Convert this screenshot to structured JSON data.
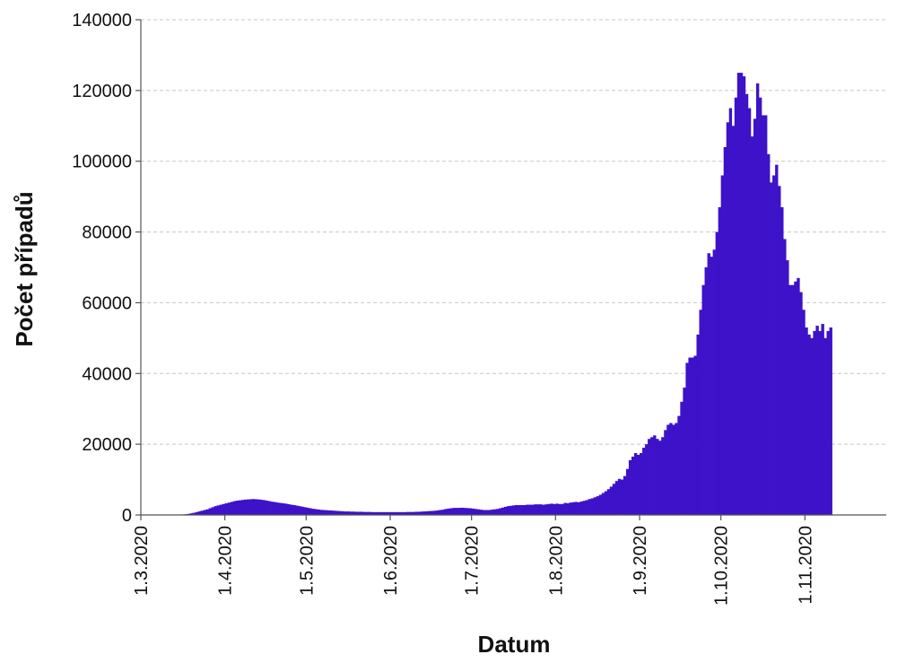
{
  "chart_data": {
    "type": "bar",
    "title": "",
    "xlabel": "Datum",
    "ylabel": "Počet případů",
    "bar_color": "#3d12c9",
    "grid": true,
    "ylim": [
      0,
      140000
    ],
    "y_ticks": [
      0,
      20000,
      40000,
      60000,
      80000,
      100000,
      120000,
      140000
    ],
    "x_start_date": "2020-03-01",
    "x_end_date": "2020-11-30",
    "x_ticks": [
      "1.3.2020",
      "1.4.2020",
      "1.5.2020",
      "1.6.2020",
      "1.7.2020",
      "1.8.2020",
      "1.9.2020",
      "1.10.2020",
      "1.11.2020"
    ],
    "series": [
      {
        "values": [
          0,
          0,
          0,
          0,
          0,
          0,
          0,
          0,
          0,
          0,
          0,
          0,
          0,
          0,
          100,
          150,
          200,
          300,
          450,
          600,
          800,
          1000,
          1200,
          1400,
          1600,
          1900,
          2200,
          2500,
          2700,
          2900,
          3100,
          3300,
          3500,
          3700,
          3900,
          4050,
          4150,
          4250,
          4350,
          4400,
          4450,
          4500,
          4450,
          4400,
          4300,
          4200,
          4050,
          3900,
          3750,
          3650,
          3500,
          3400,
          3300,
          3200,
          3050,
          2900,
          2800,
          2650,
          2500,
          2350,
          2200,
          2050,
          1900,
          1750,
          1650,
          1550,
          1450,
          1400,
          1350,
          1300,
          1250,
          1200,
          1150,
          1100,
          1050,
          1000,
          1000,
          950,
          950,
          900,
          900,
          900,
          850,
          850,
          850,
          800,
          800,
          800,
          800,
          800,
          800,
          800,
          800,
          800,
          800,
          800,
          800,
          800,
          850,
          850,
          850,
          900,
          900,
          950,
          1000,
          1050,
          1100,
          1150,
          1200,
          1300,
          1400,
          1500,
          1700,
          1800,
          1900,
          2000,
          2000,
          2000,
          2050,
          2000,
          1950,
          1900,
          1800,
          1700,
          1600,
          1500,
          1400,
          1400,
          1400,
          1500,
          1600,
          1700,
          1900,
          2100,
          2300,
          2500,
          2600,
          2700,
          2800,
          2800,
          2800,
          2800,
          2900,
          2900,
          2900,
          3000,
          3000,
          3000,
          2900,
          3000,
          3100,
          3200,
          3100,
          3200,
          3100,
          3100,
          3400,
          3300,
          3500,
          3600,
          3700,
          3600,
          3800,
          4000,
          4200,
          4500,
          4700,
          5000,
          5300,
          5700,
          6200,
          6700,
          7300,
          8000,
          8800,
          9600,
          10200,
          10000,
          11000,
          13000,
          15500,
          16500,
          17500,
          17000,
          17500,
          19000,
          20000,
          21500,
          22000,
          22500,
          21500,
          21000,
          22000,
          24000,
          25500,
          26000,
          25500,
          26000,
          28000,
          32000,
          36000,
          43000,
          44500,
          44500,
          45000,
          51000,
          58000,
          65000,
          70000,
          74000,
          73000,
          75000,
          80000,
          87000,
          96000,
          104000,
          111000,
          115000,
          110000,
          118000,
          125000,
          125000,
          124000,
          119000,
          115000,
          107000,
          112000,
          122000,
          118000,
          113000,
          113000,
          102000,
          94000,
          96000,
          99000,
          93000,
          87000,
          78000,
          72000,
          65000,
          65000,
          66000,
          67000,
          63000,
          58000,
          53000,
          51000,
          50000,
          52000,
          53500,
          52000,
          54000,
          50000,
          52000,
          53000
        ]
      }
    ]
  }
}
